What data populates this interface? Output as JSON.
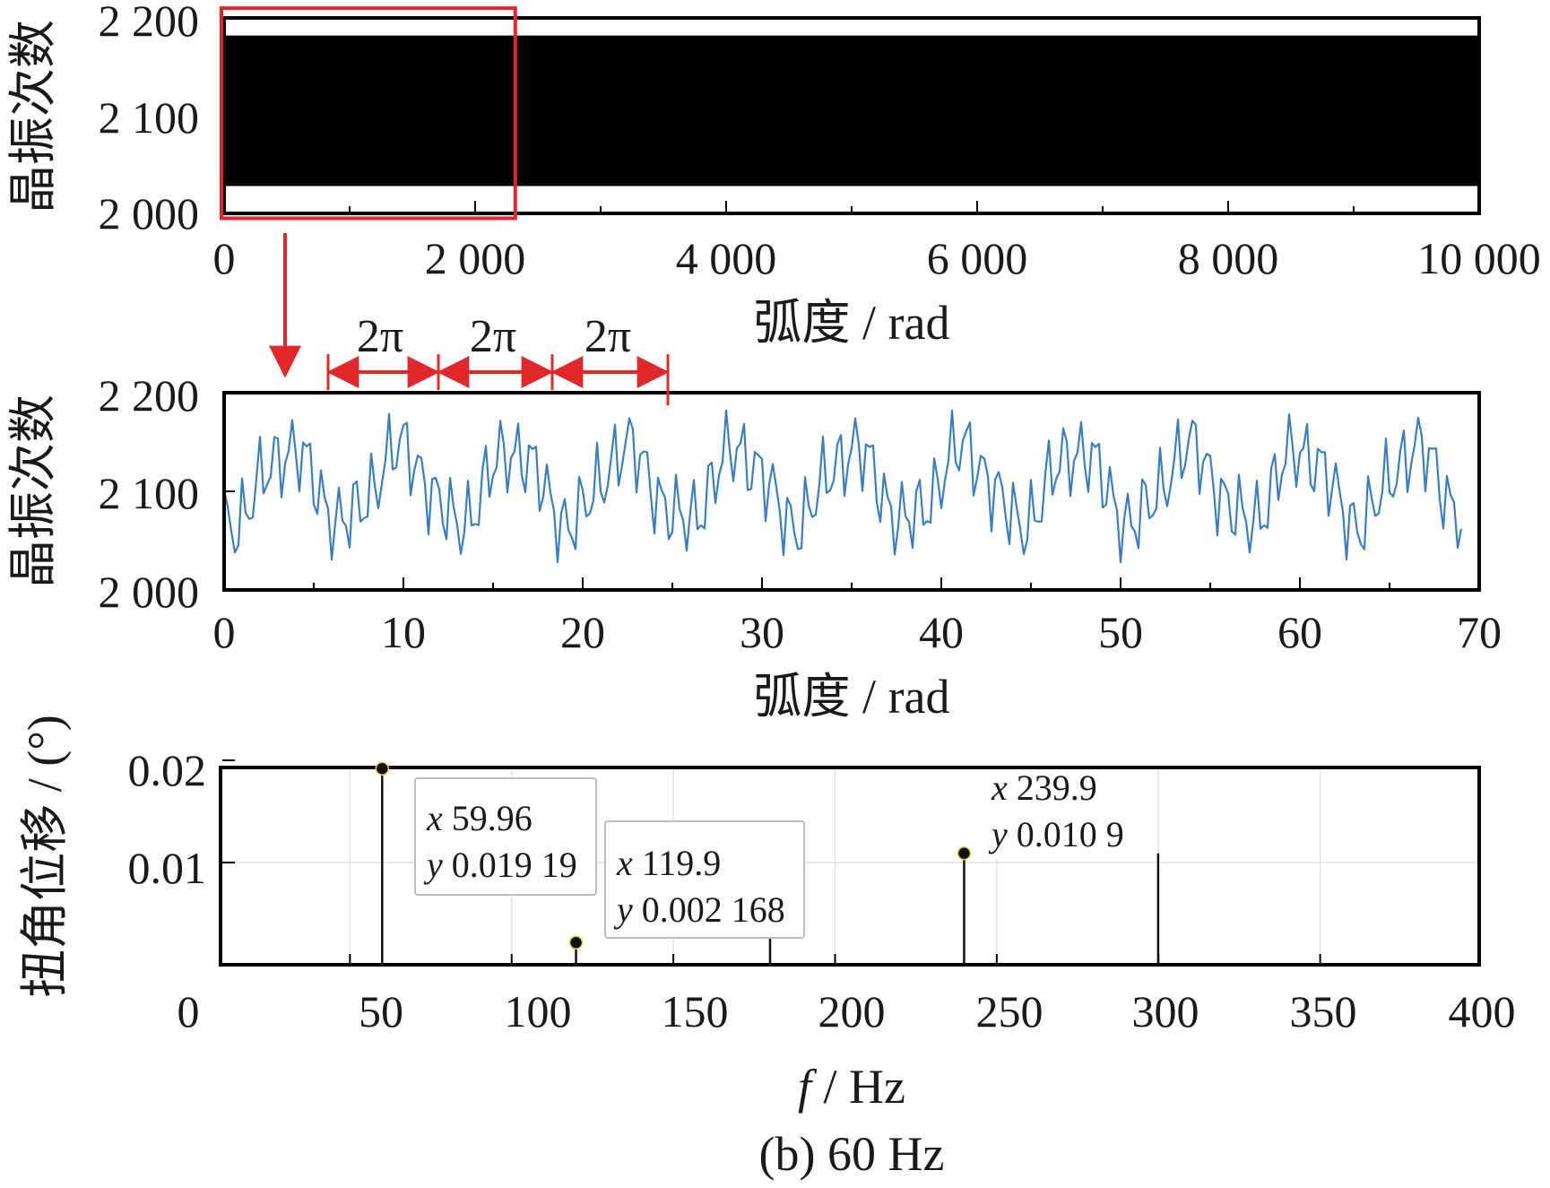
{
  "caption": "(b)  60 Hz",
  "chart_data": [
    {
      "type": "line",
      "panel": "top",
      "xlabel": "弧度 / rad",
      "ylabel": "晶振次数",
      "xlim": [
        0,
        10000
      ],
      "ylim": [
        2000,
        2200
      ],
      "xticks": [
        "0",
        "2 000",
        "4 000",
        "6 000",
        "8 000",
        "10 000"
      ],
      "yticks": [
        "2 000",
        "2 100",
        "2 200"
      ],
      "series": [
        {
          "color": "#000000",
          "envelope_min": 2028,
          "envelope_max": 2182,
          "x_range": [
            0,
            10000
          ]
        }
      ],
      "zoom_box": {
        "x": [
          0,
          2320
        ],
        "y": [
          1995,
          2210
        ]
      }
    },
    {
      "type": "line",
      "panel": "middle",
      "xlabel": "弧度 / rad",
      "ylabel": "晶振次数",
      "xlim": [
        0,
        70
      ],
      "ylim": [
        2000,
        2200
      ],
      "xticks": [
        "0",
        "10",
        "20",
        "30",
        "40",
        "50",
        "60",
        "70"
      ],
      "yticks": [
        "2 000",
        "2 100",
        "2 200"
      ],
      "series": [
        {
          "color": "#3a7ebf",
          "x_step": 0.2,
          "x_end": 69,
          "period": 6.2832,
          "min": 2028,
          "max": 2182
        }
      ],
      "period_spans": [
        {
          "label": "2π",
          "x": [
            5.8,
            12.1
          ]
        },
        {
          "label": "2π",
          "x": [
            12.1,
            18.4
          ]
        },
        {
          "label": "2π",
          "x": [
            18.4,
            24.6
          ]
        }
      ]
    },
    {
      "type": "stem",
      "panel": "bottom",
      "xlabel": "f / Hz",
      "xlabel_italic": "f",
      "xlabel_rest": " / Hz",
      "ylabel": "扭角位移 / (°)",
      "xlim": [
        0,
        400
      ],
      "ylim": [
        0,
        0.02
      ],
      "xticks": [
        "0",
        "50",
        "100",
        "150",
        "200",
        "250",
        "300",
        "350",
        "400"
      ],
      "yticks": [
        "0.01",
        "0.02"
      ],
      "grid": true,
      "stems": [
        {
          "x": 59.96,
          "y": 0.01919
        },
        {
          "x": 119.9,
          "y": 0.002168
        },
        {
          "x": 179.9,
          "y": 0.0027
        },
        {
          "x": 239.9,
          "y": 0.0109
        },
        {
          "x": 299.9,
          "y": 0.0109
        }
      ],
      "datatips": [
        {
          "x_label": "x",
          "x_value": "59.96",
          "y_label": "y",
          "y_value": "0.019 19"
        },
        {
          "x_label": "x",
          "x_value": "119.9",
          "y_label": "y",
          "y_value": "0.002 168"
        },
        {
          "x_label": "x",
          "x_value": "239.9",
          "y_label": "y",
          "y_value": "0.010 9"
        }
      ]
    }
  ]
}
